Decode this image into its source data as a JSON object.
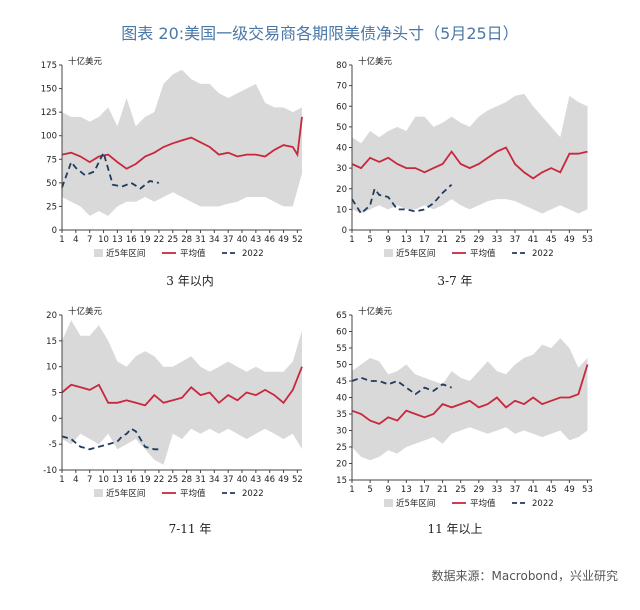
{
  "title": "图表 20:美国一级交易商各期限美债净头寸（5月25日）",
  "source": "数据来源：Macrobond，兴业研究",
  "colors": {
    "band": "#d9d9d9",
    "avg": "#c8283c",
    "y2022": "#1f3b5e",
    "title": "#4a78a8"
  },
  "chart_data": [
    {
      "type": "line",
      "caption": "3 年以内",
      "unit_label": "十亿美元",
      "xticks": [
        1,
        4,
        7,
        10,
        13,
        16,
        19,
        22,
        25,
        28,
        31,
        34,
        37,
        40,
        43,
        46,
        49,
        52
      ],
      "xlim": [
        1,
        53
      ],
      "ylim": [
        0,
        175
      ],
      "yticks": [
        0,
        25,
        50,
        75,
        100,
        125,
        150,
        175
      ],
      "legend": [
        "近5年区间",
        "平均值",
        "2022"
      ],
      "series": [
        {
          "name": "近5年区间",
          "kind": "band",
          "x": [
            1,
            3,
            5,
            7,
            9,
            11,
            13,
            15,
            17,
            19,
            21,
            23,
            25,
            27,
            29,
            31,
            33,
            35,
            37,
            39,
            41,
            43,
            45,
            47,
            49,
            51,
            53
          ],
          "lower": [
            35,
            30,
            25,
            15,
            20,
            15,
            25,
            30,
            30,
            35,
            30,
            35,
            40,
            35,
            30,
            25,
            25,
            25,
            28,
            30,
            35,
            35,
            35,
            30,
            25,
            25,
            60
          ],
          "upper": [
            125,
            120,
            120,
            115,
            120,
            130,
            110,
            140,
            110,
            120,
            125,
            155,
            165,
            170,
            160,
            155,
            155,
            145,
            140,
            145,
            150,
            155,
            135,
            130,
            130,
            125,
            130
          ]
        },
        {
          "name": "平均值",
          "kind": "line",
          "x": [
            1,
            3,
            5,
            7,
            9,
            11,
            13,
            15,
            17,
            19,
            21,
            23,
            25,
            27,
            29,
            31,
            33,
            35,
            37,
            39,
            41,
            43,
            45,
            47,
            49,
            51,
            52,
            53
          ],
          "y": [
            80,
            82,
            78,
            72,
            78,
            80,
            72,
            65,
            70,
            78,
            82,
            88,
            92,
            95,
            98,
            93,
            88,
            80,
            82,
            78,
            80,
            80,
            78,
            85,
            90,
            88,
            80,
            120
          ]
        },
        {
          "name": "2022",
          "kind": "dash",
          "x": [
            1,
            3,
            4,
            6,
            8,
            10,
            12,
            14,
            16,
            18,
            20,
            22
          ],
          "y": [
            45,
            72,
            66,
            58,
            62,
            82,
            48,
            46,
            50,
            44,
            52,
            50
          ]
        }
      ]
    },
    {
      "type": "line",
      "caption": "3-7 年",
      "unit_label": "十亿美元",
      "xticks": [
        1,
        5,
        9,
        13,
        17,
        21,
        25,
        29,
        33,
        37,
        41,
        45,
        49,
        53
      ],
      "xlim": [
        1,
        54
      ],
      "ylim": [
        0,
        80
      ],
      "yticks": [
        0,
        10,
        20,
        30,
        40,
        50,
        60,
        70,
        80
      ],
      "legend": [
        "近5年区间",
        "平均值",
        "2022"
      ],
      "series": [
        {
          "name": "近5年区间",
          "kind": "band",
          "x": [
            1,
            3,
            5,
            7,
            9,
            11,
            13,
            15,
            17,
            19,
            21,
            23,
            25,
            27,
            29,
            31,
            33,
            35,
            37,
            39,
            41,
            43,
            45,
            47,
            49,
            51,
            53
          ],
          "lower": [
            10,
            8,
            10,
            12,
            10,
            12,
            10,
            10,
            12,
            10,
            12,
            15,
            12,
            10,
            12,
            14,
            15,
            15,
            14,
            12,
            10,
            8,
            10,
            12,
            10,
            8,
            10
          ],
          "upper": [
            45,
            42,
            48,
            45,
            48,
            50,
            48,
            55,
            55,
            50,
            52,
            55,
            52,
            50,
            55,
            58,
            60,
            62,
            65,
            66,
            60,
            55,
            50,
            45,
            65,
            62,
            60
          ]
        },
        {
          "name": "平均值",
          "kind": "line",
          "x": [
            1,
            3,
            5,
            7,
            9,
            11,
            13,
            15,
            17,
            19,
            21,
            23,
            25,
            27,
            29,
            31,
            33,
            35,
            37,
            39,
            41,
            43,
            45,
            47,
            49,
            51,
            53
          ],
          "y": [
            32,
            30,
            35,
            33,
            35,
            32,
            30,
            30,
            28,
            30,
            32,
            38,
            32,
            30,
            32,
            35,
            38,
            40,
            32,
            28,
            25,
            28,
            30,
            28,
            37,
            37,
            38
          ]
        },
        {
          "name": "2022",
          "kind": "dash",
          "x": [
            1,
            3,
            5,
            6,
            7,
            9,
            11,
            13,
            15,
            17,
            19,
            21,
            23
          ],
          "y": [
            15,
            8,
            12,
            20,
            17,
            16,
            10,
            10,
            9,
            10,
            13,
            18,
            22
          ]
        }
      ]
    },
    {
      "type": "line",
      "caption": "7-11 年",
      "unit_label": "十亿美元",
      "xticks": [
        1,
        4,
        7,
        10,
        13,
        16,
        19,
        22,
        25,
        28,
        31,
        34,
        37,
        40,
        43,
        46,
        49,
        52
      ],
      "xlim": [
        1,
        53
      ],
      "ylim": [
        -10,
        20
      ],
      "yticks": [
        -10,
        -5,
        0,
        5,
        10,
        15,
        20
      ],
      "legend": [
        "近5年区间",
        "平均值",
        "2022"
      ],
      "series": [
        {
          "name": "近5年区间",
          "kind": "band",
          "x": [
            1,
            3,
            5,
            7,
            9,
            11,
            13,
            15,
            17,
            19,
            21,
            23,
            25,
            27,
            29,
            31,
            33,
            35,
            37,
            39,
            41,
            43,
            45,
            47,
            49,
            51,
            53
          ],
          "lower": [
            -4,
            -5,
            -3,
            -4,
            -5,
            -3,
            -6,
            -5,
            -4,
            -6,
            -8,
            -9,
            -3,
            -4,
            -2,
            -3,
            -2,
            -3,
            -2,
            -3,
            -4,
            -3,
            -2,
            -3,
            -4,
            -3,
            -6
          ],
          "upper": [
            15,
            19,
            16,
            16,
            18,
            15,
            11,
            10,
            12,
            13,
            12,
            10,
            10,
            11,
            12,
            10,
            9,
            10,
            11,
            10,
            9,
            10,
            9,
            9,
            9,
            11,
            17
          ]
        },
        {
          "name": "平均值",
          "kind": "line",
          "x": [
            1,
            3,
            5,
            7,
            9,
            11,
            13,
            15,
            17,
            19,
            21,
            23,
            25,
            27,
            29,
            31,
            33,
            35,
            37,
            39,
            41,
            43,
            45,
            47,
            49,
            51,
            53
          ],
          "y": [
            5,
            6.5,
            6,
            5.5,
            6.5,
            3,
            3,
            3.5,
            3,
            2.5,
            4.5,
            3,
            3.5,
            4,
            6,
            4.5,
            5,
            3,
            4.5,
            3.5,
            5,
            4.5,
            5.5,
            4.5,
            3,
            5.5,
            10
          ]
        },
        {
          "name": "2022",
          "kind": "dash",
          "x": [
            1,
            3,
            5,
            7,
            9,
            11,
            13,
            14,
            15,
            16,
            17,
            19,
            21,
            22
          ],
          "y": [
            -3.5,
            -4,
            -5.5,
            -6,
            -5.5,
            -5,
            -4.5,
            -3.5,
            -3,
            -2,
            -2.5,
            -5.5,
            -6,
            -6
          ]
        }
      ]
    },
    {
      "type": "line",
      "caption": "11 年以上",
      "unit_label": "十亿美元",
      "xticks": [
        1,
        5,
        9,
        13,
        17,
        21,
        25,
        29,
        33,
        37,
        41,
        45,
        49,
        53
      ],
      "xlim": [
        1,
        54
      ],
      "ylim": [
        15,
        65
      ],
      "yticks": [
        15,
        20,
        25,
        30,
        35,
        40,
        45,
        50,
        55,
        60,
        65
      ],
      "legend": [
        "近5年区间",
        "平均值",
        "2022"
      ],
      "series": [
        {
          "name": "近5年区间",
          "kind": "band",
          "x": [
            1,
            3,
            5,
            7,
            9,
            11,
            13,
            15,
            17,
            19,
            21,
            23,
            25,
            27,
            29,
            31,
            33,
            35,
            37,
            39,
            41,
            43,
            45,
            47,
            49,
            51,
            53
          ],
          "lower": [
            25,
            22,
            21,
            22,
            24,
            23,
            25,
            26,
            27,
            28,
            26,
            29,
            30,
            31,
            30,
            29,
            30,
            31,
            29,
            30,
            29,
            28,
            29,
            30,
            27,
            28,
            30
          ],
          "upper": [
            48,
            50,
            52,
            51,
            47,
            48,
            50,
            47,
            46,
            45,
            44,
            48,
            46,
            45,
            48,
            51,
            48,
            47,
            50,
            52,
            53,
            56,
            55,
            58,
            55,
            49,
            52
          ]
        },
        {
          "name": "平均值",
          "kind": "line",
          "x": [
            1,
            3,
            5,
            7,
            9,
            11,
            13,
            15,
            17,
            19,
            21,
            23,
            25,
            27,
            29,
            31,
            33,
            35,
            37,
            39,
            41,
            43,
            45,
            47,
            49,
            51,
            53
          ],
          "y": [
            36,
            35,
            33,
            32,
            34,
            33,
            36,
            35,
            34,
            35,
            38,
            37,
            38,
            39,
            37,
            38,
            40,
            37,
            39,
            38,
            40,
            38,
            39,
            40,
            40,
            41,
            50
          ]
        },
        {
          "name": "2022",
          "kind": "dash",
          "x": [
            1,
            3,
            5,
            7,
            9,
            11,
            13,
            15,
            17,
            19,
            21,
            23
          ],
          "y": [
            45,
            46,
            45,
            45,
            44,
            45,
            43,
            41,
            43,
            42,
            44,
            43
          ]
        }
      ]
    }
  ]
}
